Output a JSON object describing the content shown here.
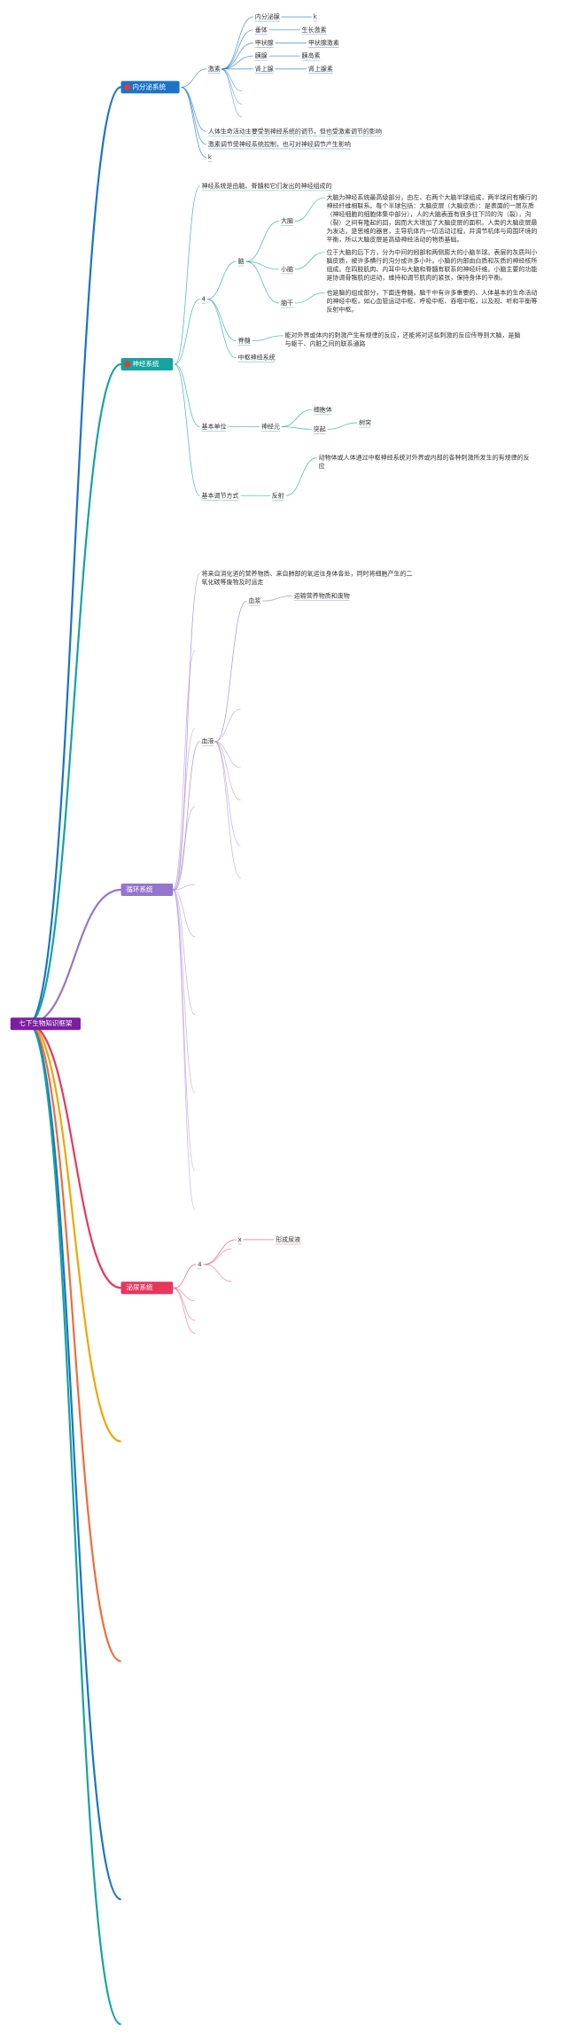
{
  "root": {
    "label": "七下生物知识框架",
    "branches": [
      {
        "label": "内分泌系统",
        "children": [
          {
            "label": "激素",
            "children": [
              {
                "label": "内分泌腺",
                "children": [
                  {
                    "label": "k"
                  }
                ]
              },
              {
                "label": "垂体",
                "children": [
                  {
                    "label": "生长激素"
                  }
                ]
              },
              {
                "label": "甲状腺",
                "children": [
                  {
                    "label": "甲状腺激素"
                  }
                ]
              },
              {
                "label": "胰腺",
                "children": [
                  {
                    "label": "胰岛素"
                  }
                ]
              },
              {
                "label": "肾上腺",
                "children": [
                  {
                    "label": "肾上腺素"
                  }
                ]
              }
            ]
          },
          {
            "label": "人体生命活动主要受到神经系统的调节，但也受激素调节的影响"
          },
          {
            "label": "激素调节受神经系统控制，也可对神经调节产生影响"
          },
          {
            "label": "k"
          }
        ]
      },
      {
        "label": "神经系统",
        "children": [
          {
            "label": "神经系统是由脑、脊髓和它们发出的神经组成的"
          },
          {
            "label": "4",
            "children": [
              {
                "label": "脑",
                "children": [
                  {
                    "label": "大脑",
                    "children": [
                      {
                        "label": "大脑为神经系统最高级部分，由左、右两个大脑半球组成，两半球间有横行的神经纤维相联系。每个半球包括：大脑皮层（大脑皮质）：是表面的一层灰质（神经细胞的细胞体集中部分），人的大脑表面有很多往下凹的沟（裂），沟（裂）之间有隆起的回，因而大大增加了大脑皮层的面积。人类的大脑皮层最为发达，是思维的器官，主导机体内一切活动过程，并调节机体与周围环境的平衡，所以大脑皮层是高级神经活动的物质基础。"
                      }
                    ]
                  },
                  {
                    "label": "小脑",
                    "children": [
                      {
                        "label": "位于大脑的后下方，分为中间的蚓部和两侧膨大的小脑半球。表层的灰质叫小脑皮质，被许多横行的沟分成许多小叶。小脑的内部由白质和灰质的神经核所组成。在四肢肌肉、内耳中与大脑和脊髓有联系的神经纤维。小脑主要的功能是协调骨骼肌的运动，维持和调节肌肉的紧张，保持身体的平衡。"
                      }
                    ]
                  },
                  {
                    "label": "脑干",
                    "children": [
                      {
                        "label": "也是脑的组成部分，下面连脊髓，脑干中有许多重要的、人体基本的生命活动的神经中枢，如心血管运动中枢、呼吸中枢、吞咽中枢，以及视、听和平衡等反射中枢。"
                      }
                    ]
                  }
                ]
              },
              {
                "label": "脊髓",
                "children": [
                  {
                    "label": "能对外界或体内的刺激产生有规律的反应，还能将对这些刺激的反应传导到大脑，是脑与躯干、内脏之间的联系通路"
                  }
                ]
              },
              {
                "label": "中枢神经系统"
              }
            ]
          },
          {
            "label": "基本单位",
            "children": [
              {
                "label": "神经元",
                "children": [
                  {
                    "label": "细胞体"
                  },
                  {
                    "label": "突起",
                    "children": [
                      {
                        "label": "树突"
                      }
                    ]
                  }
                ]
              }
            ]
          },
          {
            "label": "基本调节方式",
            "children": [
              {
                "label": "反射",
                "children": [
                  {
                    "label": "动物体或人体通过中枢神经系统对外界或内部的各种刺激所发生的有规律的反应"
                  }
                ]
              }
            ]
          }
        ]
      },
      {
        "label": "循环系统",
        "children": [
          {
            "label": "将来自消化道的营养物质、来自肺部的氧运往身体各处，同时将细胞产生的二氧化碳等废物及时运走"
          },
          {
            "label": "血液",
            "children": [
              {
                "label": "血浆",
                "children": [
                  {
                    "label": "运输营养物质和废物"
                  }
                ]
              }
            ]
          }
        ]
      },
      {
        "label": "泌尿系统",
        "children": [
          {
            "label": "4",
            "children": [
              {
                "label": "x",
                "children": [
                  {
                    "label": "形成尿液"
                  }
                ]
              }
            ]
          }
        ]
      }
    ]
  }
}
